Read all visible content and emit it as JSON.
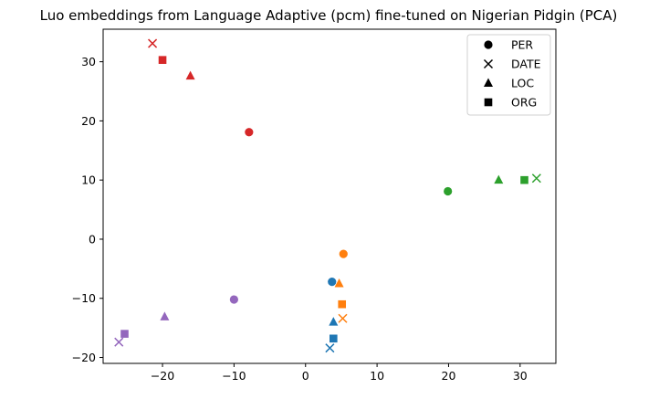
{
  "chart_data": {
    "type": "scatter",
    "title": "Luo embeddings from Language Adaptive (pcm) fine-tuned on Nigerian Pidgin (PCA)",
    "xlabel": "",
    "ylabel": "",
    "xlim": [
      -28.3,
      35.0
    ],
    "ylim": [
      -21.0,
      35.5
    ],
    "xticks": [
      -20,
      -10,
      0,
      10,
      20,
      30
    ],
    "yticks": [
      -20,
      -10,
      0,
      10,
      20,
      30
    ],
    "grid": false,
    "legend": {
      "placement": "top-right",
      "entries": [
        {
          "label": "PER",
          "marker": "circle"
        },
        {
          "label": "DATE",
          "marker": "x"
        },
        {
          "label": "LOC",
          "marker": "triangle"
        },
        {
          "label": "ORG",
          "marker": "square"
        }
      ]
    },
    "series": [
      {
        "name": "red group",
        "color": "#d62728",
        "points": [
          {
            "label": "PER",
            "marker": "circle",
            "x": -7.9,
            "y": 18.1
          },
          {
            "label": "DATE",
            "marker": "x",
            "x": -21.4,
            "y": 33.1
          },
          {
            "label": "LOC",
            "marker": "triangle",
            "x": -16.1,
            "y": 27.6
          },
          {
            "label": "ORG",
            "marker": "square",
            "x": -20.0,
            "y": 30.3
          }
        ]
      },
      {
        "name": "green group",
        "color": "#2ca02c",
        "points": [
          {
            "label": "PER",
            "marker": "circle",
            "x": 19.9,
            "y": 8.1
          },
          {
            "label": "DATE",
            "marker": "x",
            "x": 32.3,
            "y": 10.3
          },
          {
            "label": "LOC",
            "marker": "triangle",
            "x": 27.0,
            "y": 10.0
          },
          {
            "label": "ORG",
            "marker": "square",
            "x": 30.6,
            "y": 10.0
          }
        ]
      },
      {
        "name": "orange group",
        "color": "#ff7f0e",
        "points": [
          {
            "label": "PER",
            "marker": "circle",
            "x": 5.3,
            "y": -2.5
          },
          {
            "label": "DATE",
            "marker": "x",
            "x": 5.2,
            "y": -13.4
          },
          {
            "label": "LOC",
            "marker": "triangle",
            "x": 4.7,
            "y": -7.5
          },
          {
            "label": "ORG",
            "marker": "square",
            "x": 5.1,
            "y": -11.0
          }
        ]
      },
      {
        "name": "blue group",
        "color": "#1f77b4",
        "points": [
          {
            "label": "PER",
            "marker": "circle",
            "x": 3.7,
            "y": -7.2
          },
          {
            "label": "DATE",
            "marker": "x",
            "x": 3.4,
            "y": -18.4
          },
          {
            "label": "LOC",
            "marker": "triangle",
            "x": 3.9,
            "y": -14.0
          },
          {
            "label": "ORG",
            "marker": "square",
            "x": 3.9,
            "y": -16.8
          }
        ]
      },
      {
        "name": "purple group",
        "color": "#9467bd",
        "points": [
          {
            "label": "PER",
            "marker": "circle",
            "x": -10.0,
            "y": -10.2
          },
          {
            "label": "DATE",
            "marker": "x",
            "x": -26.1,
            "y": -17.4
          },
          {
            "label": "LOC",
            "marker": "triangle",
            "x": -19.7,
            "y": -13.1
          },
          {
            "label": "ORG",
            "marker": "square",
            "x": -25.3,
            "y": -16.0
          }
        ]
      }
    ]
  }
}
